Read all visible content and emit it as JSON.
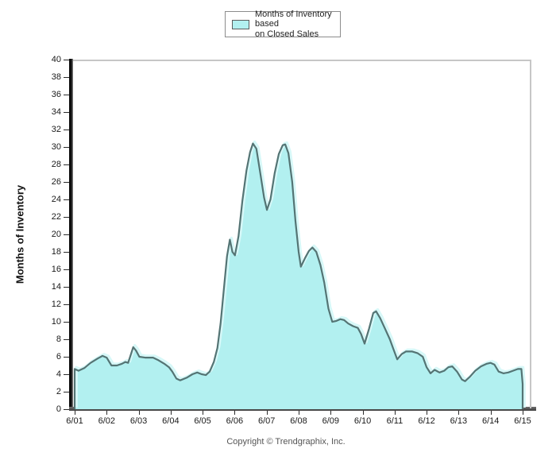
{
  "legend": {
    "line1": "Months of Inventory based",
    "line2": "on Closed Sales"
  },
  "y_axis": {
    "title": "Months of Inventory"
  },
  "footer": {
    "copyright": "Copyright © Trendgraphix, Inc."
  },
  "colors": {
    "fill": "#b2f0f0",
    "highlight": "#d7f8f8",
    "stroke": "#547474",
    "axis_dark": "#111111",
    "axis_gray": "#4d4d4d",
    "plot_border": "#c6c6c6"
  },
  "chart_data": {
    "type": "area",
    "title": "Months of Inventory based on Closed Sales",
    "xlabel": "",
    "ylabel": "Months of Inventory",
    "ylim": [
      0,
      40
    ],
    "y_tick_step": 2,
    "grid": false,
    "legend_position": "top-center",
    "y_ticks": [
      40,
      38,
      36,
      34,
      32,
      30,
      28,
      26,
      24,
      22,
      20,
      18,
      16,
      14,
      12,
      10,
      8,
      6,
      4,
      2,
      0
    ],
    "x_tick_labels": [
      "6/01",
      "6/02",
      "6/03",
      "6/04",
      "6/05",
      "6/06",
      "6/07",
      "6/08",
      "6/09",
      "6/10",
      "6/11",
      "6/12",
      "6/13",
      "6/14",
      "6/15"
    ],
    "x_unit": "years since 6/01",
    "series": [
      {
        "name": "Months of Inventory based on Closed Sales",
        "points": [
          [
            0.0,
            4.6
          ],
          [
            0.12,
            4.4
          ],
          [
            0.3,
            4.7
          ],
          [
            0.5,
            5.3
          ],
          [
            0.72,
            5.8
          ],
          [
            0.87,
            6.1
          ],
          [
            1.0,
            5.9
          ],
          [
            1.15,
            5.0
          ],
          [
            1.32,
            5.0
          ],
          [
            1.48,
            5.2
          ],
          [
            1.58,
            5.4
          ],
          [
            1.67,
            5.3
          ],
          [
            1.76,
            6.3
          ],
          [
            1.83,
            7.1
          ],
          [
            1.92,
            6.7
          ],
          [
            2.02,
            6.0
          ],
          [
            2.2,
            5.9
          ],
          [
            2.45,
            5.9
          ],
          [
            2.62,
            5.6
          ],
          [
            2.8,
            5.2
          ],
          [
            2.95,
            4.8
          ],
          [
            3.05,
            4.3
          ],
          [
            3.18,
            3.5
          ],
          [
            3.3,
            3.3
          ],
          [
            3.5,
            3.6
          ],
          [
            3.68,
            4.0
          ],
          [
            3.83,
            4.2
          ],
          [
            3.97,
            4.0
          ],
          [
            4.1,
            3.9
          ],
          [
            4.22,
            4.3
          ],
          [
            4.35,
            5.4
          ],
          [
            4.46,
            7.0
          ],
          [
            4.56,
            9.8
          ],
          [
            4.66,
            13.6
          ],
          [
            4.76,
            17.5
          ],
          [
            4.85,
            19.4
          ],
          [
            4.93,
            18.0
          ],
          [
            5.01,
            17.6
          ],
          [
            5.12,
            19.8
          ],
          [
            5.24,
            23.8
          ],
          [
            5.37,
            27.3
          ],
          [
            5.48,
            29.4
          ],
          [
            5.57,
            30.4
          ],
          [
            5.68,
            29.8
          ],
          [
            5.8,
            27.0
          ],
          [
            5.92,
            24.2
          ],
          [
            6.01,
            22.8
          ],
          [
            6.12,
            24.0
          ],
          [
            6.25,
            27.0
          ],
          [
            6.38,
            29.2
          ],
          [
            6.5,
            30.2
          ],
          [
            6.58,
            30.3
          ],
          [
            6.68,
            29.3
          ],
          [
            6.8,
            26.0
          ],
          [
            6.9,
            21.5
          ],
          [
            7.0,
            18.0
          ],
          [
            7.07,
            16.3
          ],
          [
            7.2,
            17.3
          ],
          [
            7.32,
            18.1
          ],
          [
            7.43,
            18.5
          ],
          [
            7.55,
            18.0
          ],
          [
            7.68,
            16.5
          ],
          [
            7.8,
            14.5
          ],
          [
            7.93,
            11.5
          ],
          [
            8.05,
            10.0
          ],
          [
            8.18,
            10.1
          ],
          [
            8.3,
            10.3
          ],
          [
            8.42,
            10.2
          ],
          [
            8.55,
            9.8
          ],
          [
            8.7,
            9.5
          ],
          [
            8.85,
            9.3
          ],
          [
            8.95,
            8.6
          ],
          [
            9.06,
            7.5
          ],
          [
            9.2,
            9.2
          ],
          [
            9.33,
            11.0
          ],
          [
            9.42,
            11.2
          ],
          [
            9.55,
            10.4
          ],
          [
            9.7,
            9.2
          ],
          [
            9.85,
            8.0
          ],
          [
            9.95,
            7.0
          ],
          [
            10.08,
            5.7
          ],
          [
            10.22,
            6.3
          ],
          [
            10.35,
            6.6
          ],
          [
            10.55,
            6.6
          ],
          [
            10.72,
            6.4
          ],
          [
            10.88,
            6.0
          ],
          [
            11.0,
            4.8
          ],
          [
            11.12,
            4.1
          ],
          [
            11.25,
            4.5
          ],
          [
            11.4,
            4.2
          ],
          [
            11.55,
            4.4
          ],
          [
            11.68,
            4.8
          ],
          [
            11.8,
            4.9
          ],
          [
            11.95,
            4.3
          ],
          [
            12.1,
            3.4
          ],
          [
            12.2,
            3.2
          ],
          [
            12.35,
            3.7
          ],
          [
            12.52,
            4.4
          ],
          [
            12.7,
            4.9
          ],
          [
            12.88,
            5.2
          ],
          [
            13.0,
            5.3
          ],
          [
            13.12,
            5.1
          ],
          [
            13.25,
            4.3
          ],
          [
            13.4,
            4.1
          ],
          [
            13.55,
            4.2
          ],
          [
            13.7,
            4.4
          ],
          [
            13.85,
            4.6
          ],
          [
            13.96,
            4.6
          ],
          [
            14.0,
            2.9
          ]
        ]
      }
    ]
  }
}
